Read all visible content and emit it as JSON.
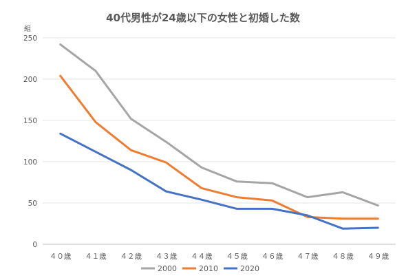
{
  "chart_data": {
    "type": "line",
    "title": "40代男性が24歳以下の女性と初婚した数",
    "ylabel": "組",
    "xlabel": "",
    "categories": [
      "４０歳",
      "４１歳",
      "４２歳",
      "４３歳",
      "４４歳",
      "４５歳",
      "４６歳",
      "４７歳",
      "４８歳",
      "４９歳"
    ],
    "ylim": [
      0,
      250
    ],
    "yticks": [
      0,
      50,
      100,
      150,
      200,
      250
    ],
    "grid": true,
    "legend": "bottom",
    "series": [
      {
        "name": "2000",
        "color": "#a5a5a5",
        "values": [
          242,
          210,
          152,
          124,
          93,
          76,
          74,
          57,
          63,
          47
        ]
      },
      {
        "name": "2010",
        "color": "#ed7d31",
        "values": [
          204,
          148,
          114,
          99,
          68,
          57,
          53,
          33,
          31,
          31
        ]
      },
      {
        "name": "2020",
        "color": "#4472c4",
        "values": [
          134,
          112,
          90,
          64,
          54,
          43,
          43,
          35,
          19,
          20
        ]
      }
    ]
  }
}
